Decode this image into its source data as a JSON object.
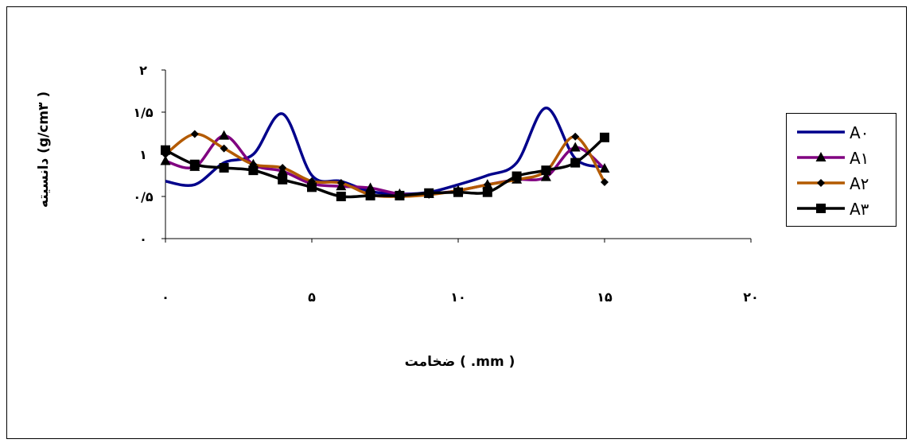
{
  "chart_data": {
    "type": "line",
    "title": "",
    "xlabel": "ضخامت ( .mm )",
    "ylabel": "دانسیته (g/cm۳ )",
    "xlim": [
      0,
      20
    ],
    "ylim": [
      0,
      2
    ],
    "x_ticks": [
      0,
      5,
      10,
      15,
      20
    ],
    "x_tick_labels": [
      "۰",
      "۵",
      "۱۰",
      "۱۵",
      "۲۰"
    ],
    "y_ticks": [
      0,
      0.5,
      1,
      1.5,
      2
    ],
    "y_tick_labels": [
      "۰",
      "۰/۵",
      "۱",
      "۱/۵",
      "۲"
    ],
    "grid": false,
    "legend_position": "right",
    "series": [
      {
        "name": "A۰",
        "color": "#00008B",
        "marker": "none",
        "x": [
          0,
          1,
          2,
          3,
          4,
          5,
          6,
          7,
          8,
          9,
          10,
          11,
          12,
          13,
          14,
          15
        ],
        "y": [
          0.68,
          0.64,
          0.9,
          1.0,
          1.48,
          0.75,
          0.68,
          0.56,
          0.53,
          0.55,
          0.64,
          0.75,
          0.9,
          1.55,
          0.95,
          0.85
        ]
      },
      {
        "name": "A۱",
        "color": "#800080",
        "marker": "triangle",
        "x": [
          0,
          1,
          2,
          3,
          4,
          5,
          6,
          7,
          8,
          9,
          10,
          11,
          12,
          13,
          14,
          15
        ],
        "y": [
          0.92,
          0.85,
          1.22,
          0.88,
          0.8,
          0.65,
          0.62,
          0.6,
          0.53,
          0.53,
          0.57,
          0.64,
          0.7,
          0.73,
          1.08,
          0.83
        ]
      },
      {
        "name": "A۲",
        "color": "#B35A00",
        "marker": "diamond",
        "x": [
          0,
          1,
          2,
          3,
          4,
          5,
          6,
          7,
          8,
          9,
          10,
          11,
          12,
          13,
          14,
          15
        ],
        "y": [
          1.0,
          1.24,
          1.07,
          0.88,
          0.84,
          0.68,
          0.66,
          0.52,
          0.5,
          0.52,
          0.57,
          0.64,
          0.7,
          0.8,
          1.21,
          0.67
        ]
      },
      {
        "name": "A۳",
        "color": "#000000",
        "marker": "square",
        "x": [
          0,
          1,
          2,
          3,
          4,
          5,
          6,
          7,
          8,
          9,
          10,
          11,
          12,
          13,
          14,
          15
        ],
        "y": [
          1.05,
          0.88,
          0.84,
          0.81,
          0.7,
          0.61,
          0.5,
          0.51,
          0.51,
          0.54,
          0.55,
          0.55,
          0.74,
          0.81,
          0.9,
          1.2
        ]
      }
    ]
  }
}
